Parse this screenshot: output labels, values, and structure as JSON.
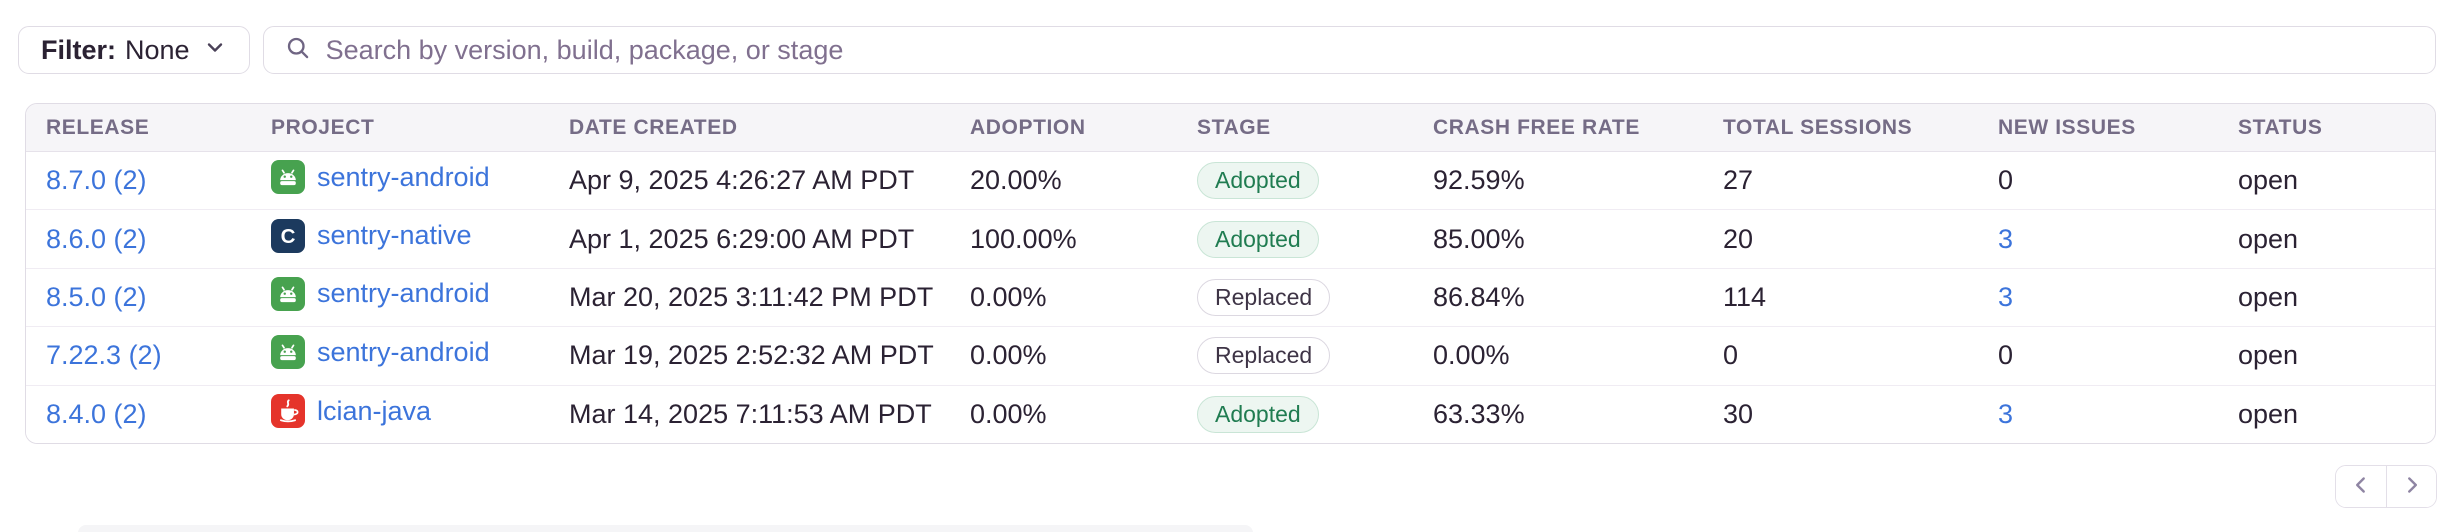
{
  "filter": {
    "label": "Filter:",
    "value": "None"
  },
  "search": {
    "placeholder": "Search by version, build, package, or stage"
  },
  "table": {
    "columns": [
      "RELEASE",
      "PROJECT",
      "DATE CREATED",
      "ADOPTION",
      "STAGE",
      "CRASH FREE RATE",
      "TOTAL SESSIONS",
      "NEW ISSUES",
      "STATUS"
    ],
    "rows": [
      {
        "version": "8.7.0 (2)",
        "project": "sentry-android",
        "platform": "android",
        "date_created": "Apr 9, 2025 4:26:27 AM PDT",
        "adoption": "20.00%",
        "stage": "Adopted",
        "crash_free_rate": "92.59%",
        "total_sessions": "27",
        "new_issues": "0",
        "status": "open"
      },
      {
        "version": "8.6.0 (2)",
        "project": "sentry-native",
        "platform": "native",
        "date_created": "Apr 1, 2025 6:29:00 AM PDT",
        "adoption": "100.00%",
        "stage": "Adopted",
        "crash_free_rate": "85.00%",
        "total_sessions": "20",
        "new_issues": "3",
        "status": "open"
      },
      {
        "version": "8.5.0 (2)",
        "project": "sentry-android",
        "platform": "android",
        "date_created": "Mar 20, 2025 3:11:42 PM PDT",
        "adoption": "0.00%",
        "stage": "Replaced",
        "crash_free_rate": "86.84%",
        "total_sessions": "114",
        "new_issues": "3",
        "status": "open"
      },
      {
        "version": "7.22.3 (2)",
        "project": "sentry-android",
        "platform": "android",
        "date_created": "Mar 19, 2025 2:52:32 AM PDT",
        "adoption": "0.00%",
        "stage": "Replaced",
        "crash_free_rate": "0.00%",
        "total_sessions": "0",
        "new_issues": "0",
        "status": "open"
      },
      {
        "version": "8.4.0 (2)",
        "project": "lcian-java",
        "platform": "java",
        "date_created": "Mar 14, 2025 7:11:53 AM PDT",
        "adoption": "0.00%",
        "stage": "Adopted",
        "crash_free_rate": "63.33%",
        "total_sessions": "30",
        "new_issues": "3",
        "status": "open"
      }
    ]
  },
  "pagination": {
    "prev": "chevron-left",
    "next": "chevron-right"
  },
  "icons": {
    "filter": "chevron-down",
    "search": "magnifier"
  },
  "colors": {
    "link": "#3c74db",
    "text": "#2b2233",
    "muted": "#80708f",
    "border": "#e0dce5",
    "header_bg": "#f6f5f8",
    "adopted_text": "#207c51",
    "adopted_bg": "#edf6f1",
    "android_icon": "#47a24f",
    "native_icon": "#1c3a5e",
    "java_icon": "#e5342b"
  }
}
